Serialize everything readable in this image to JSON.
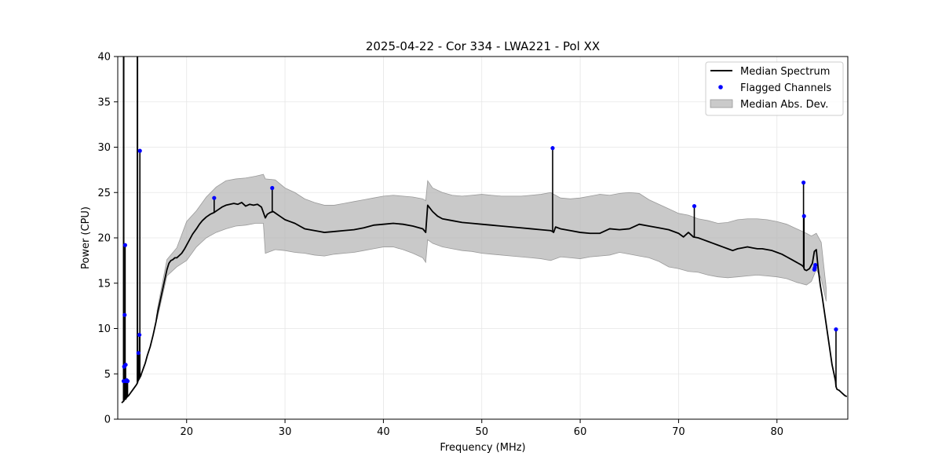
{
  "chart_data": {
    "type": "line",
    "title": "2025-04-22 - Cor 334 - LWA221 - Pol XX",
    "xlabel": "Frequency (MHz)",
    "ylabel": "Power (CPU)",
    "xlim": [
      13.0,
      87.2
    ],
    "ylim": [
      0,
      40
    ],
    "xticks": [
      20,
      30,
      40,
      50,
      60,
      70,
      80
    ],
    "yticks": [
      0,
      5,
      10,
      15,
      20,
      25,
      30,
      35,
      40
    ],
    "grid": true,
    "legend_position": "top-right",
    "series": [
      {
        "name": "Median Spectrum",
        "kind": "line",
        "color": "#000000",
        "x": [
          13.4,
          13.6,
          13.7,
          13.75,
          13.8,
          13.9,
          14.1,
          14.3,
          14.5,
          14.7,
          14.9,
          15.0,
          15.05,
          15.1,
          15.2,
          15.3,
          15.35,
          15.4,
          15.5,
          15.6,
          15.8,
          16.0,
          16.3,
          16.6,
          16.9,
          17.0,
          17.2,
          17.5,
          17.8,
          18.0,
          18.2,
          18.4,
          18.6,
          18.8,
          19.0,
          19.2,
          19.5,
          19.8,
          20.2,
          20.6,
          21.0,
          21.3,
          21.6,
          22.0,
          22.4,
          22.8,
          23.2,
          23.6,
          24.0,
          24.4,
          24.8,
          25.2,
          25.6,
          26.0,
          26.4,
          26.8,
          27.2,
          27.6,
          28.0,
          28.2,
          28.5,
          28.8,
          29.2,
          29.6,
          30.0,
          30.5,
          31.0,
          31.5,
          32.0,
          32.5,
          33.0,
          33.5,
          34.0,
          35.0,
          36.0,
          37.0,
          38.0,
          39.0,
          40.0,
          41.0,
          42.0,
          43.0,
          44.0,
          44.3,
          44.5,
          45.0,
          45.5,
          46.0,
          47.0,
          48.0,
          49.0,
          50.0,
          51.0,
          52.0,
          53.0,
          54.0,
          55.0,
          56.0,
          57.0,
          57.2,
          57.3,
          57.5,
          58.0,
          59.0,
          60.0,
          61.0,
          62.0,
          63.0,
          64.0,
          65.0,
          66.0,
          67.0,
          68.0,
          69.0,
          70.0,
          70.5,
          71.0,
          71.5,
          72.0,
          72.5,
          73.0,
          73.5,
          74.0,
          74.5,
          75.0,
          75.5,
          76.0,
          76.5,
          77.0,
          77.5,
          78.0,
          78.5,
          79.0,
          79.5,
          80.0,
          80.5,
          81.0,
          81.5,
          82.0,
          82.5,
          82.7,
          82.8,
          83.0,
          83.3,
          83.6,
          83.8,
          84.0,
          84.2,
          84.4,
          84.6,
          84.8,
          85.0,
          85.2,
          85.4,
          85.6,
          85.8,
          85.95,
          86.0,
          86.1,
          86.3,
          86.5,
          86.7,
          86.9,
          87.1
        ],
        "y": [
          1.8,
          2.0,
          2.2,
          2.3,
          2.2,
          2.4,
          2.6,
          2.9,
          3.2,
          3.5,
          3.8,
          4.0,
          4.2,
          4.3,
          4.5,
          4.7,
          4.8,
          5.0,
          5.3,
          5.6,
          6.2,
          7.0,
          8.0,
          9.3,
          10.8,
          11.5,
          12.5,
          14.0,
          15.5,
          16.5,
          17.2,
          17.5,
          17.6,
          17.8,
          17.8,
          18.0,
          18.3,
          18.8,
          19.6,
          20.4,
          21.0,
          21.5,
          21.9,
          22.3,
          22.6,
          22.8,
          23.1,
          23.4,
          23.6,
          23.7,
          23.8,
          23.7,
          23.9,
          23.5,
          23.7,
          23.6,
          23.7,
          23.4,
          22.2,
          22.6,
          22.8,
          22.9,
          22.6,
          22.3,
          22.0,
          21.8,
          21.6,
          21.3,
          21.0,
          20.9,
          20.8,
          20.7,
          20.6,
          20.7,
          20.8,
          20.9,
          21.1,
          21.4,
          21.5,
          21.6,
          21.5,
          21.3,
          21.0,
          20.6,
          23.6,
          22.9,
          22.4,
          22.1,
          21.9,
          21.7,
          21.6,
          21.5,
          21.4,
          21.3,
          21.2,
          21.1,
          21.0,
          20.9,
          20.8,
          20.7,
          20.6,
          21.2,
          21.0,
          20.8,
          20.6,
          20.5,
          20.5,
          21.0,
          20.9,
          21.0,
          21.5,
          21.3,
          21.1,
          20.9,
          20.5,
          20.1,
          20.6,
          20.1,
          20.0,
          19.8,
          19.6,
          19.4,
          19.2,
          19.0,
          18.8,
          18.6,
          18.8,
          18.9,
          19.0,
          18.9,
          18.8,
          18.8,
          18.7,
          18.6,
          18.4,
          18.2,
          17.9,
          17.6,
          17.3,
          17.0,
          16.8,
          16.5,
          16.4,
          16.6,
          17.2,
          18.5,
          18.7,
          16.5,
          14.8,
          13.5,
          12.0,
          10.5,
          9.0,
          7.5,
          6.0,
          5.0,
          4.2,
          3.6,
          3.3,
          3.2,
          3.0,
          2.8,
          2.6,
          2.5
        ]
      },
      {
        "name": "Flagged Channels",
        "kind": "scatter",
        "color": "#0000ff",
        "x": [
          13.6,
          13.65,
          13.7,
          13.75,
          13.8,
          13.85,
          13.9,
          14.0,
          15.1,
          15.2,
          15.25,
          22.8,
          28.7,
          57.2,
          71.6,
          82.7,
          82.75,
          83.8,
          83.85,
          83.9,
          86.0
        ],
        "y": [
          4.2,
          5.8,
          11.5,
          19.2,
          6.0,
          4.2,
          4.3,
          4.2,
          7.3,
          9.3,
          29.6,
          24.4,
          25.5,
          29.9,
          23.5,
          26.1,
          22.4,
          16.5,
          16.7,
          17.0,
          9.9
        ]
      },
      {
        "name": "Median Abs. Dev.",
        "kind": "band",
        "color": "#b4b4b4",
        "x": [
          17.0,
          18.0,
          19.0,
          20.0,
          21.0,
          22.0,
          23.0,
          24.0,
          25.0,
          26.0,
          27.0,
          27.8,
          28.0,
          29.0,
          30.0,
          31.0,
          32.0,
          33.0,
          34.0,
          35.0,
          36.0,
          37.0,
          38.0,
          39.0,
          40.0,
          41.0,
          42.0,
          43.0,
          44.0,
          44.3,
          44.5,
          45.0,
          46.0,
          47.0,
          48.0,
          49.0,
          50.0,
          51.0,
          52.0,
          53.0,
          54.0,
          55.0,
          56.0,
          57.0,
          58.0,
          59.0,
          60.0,
          61.0,
          62.0,
          63.0,
          64.0,
          65.0,
          66.0,
          67.0,
          68.0,
          69.0,
          70.0,
          71.0,
          72.0,
          73.0,
          74.0,
          75.0,
          76.0,
          77.0,
          78.0,
          79.0,
          80.0,
          81.0,
          82.0,
          83.0,
          83.5,
          84.0,
          84.5,
          85.0
        ],
        "lower": [
          11.0,
          15.8,
          16.8,
          17.5,
          19.0,
          20.0,
          20.6,
          21.0,
          21.3,
          21.4,
          21.6,
          21.6,
          18.3,
          18.7,
          18.6,
          18.4,
          18.3,
          18.1,
          18.0,
          18.2,
          18.3,
          18.4,
          18.6,
          18.8,
          19.0,
          19.0,
          18.7,
          18.3,
          17.8,
          17.3,
          19.8,
          19.4,
          19.0,
          18.8,
          18.6,
          18.5,
          18.3,
          18.2,
          18.1,
          18.0,
          17.9,
          17.8,
          17.7,
          17.5,
          17.9,
          17.8,
          17.7,
          17.9,
          18.0,
          18.1,
          18.4,
          18.2,
          18.0,
          17.8,
          17.4,
          16.8,
          16.6,
          16.3,
          16.2,
          15.9,
          15.7,
          15.6,
          15.7,
          15.8,
          15.9,
          15.8,
          15.7,
          15.5,
          15.1,
          14.8,
          15.2,
          16.5,
          15.5,
          13.0
        ],
        "upper": [
          12.0,
          17.6,
          18.9,
          21.8,
          23.0,
          24.5,
          25.6,
          26.3,
          26.5,
          26.6,
          26.8,
          27.0,
          26.5,
          26.4,
          25.5,
          25.0,
          24.3,
          23.9,
          23.6,
          23.6,
          23.8,
          24.0,
          24.2,
          24.4,
          24.6,
          24.7,
          24.6,
          24.5,
          24.3,
          24.1,
          26.3,
          25.5,
          25.0,
          24.7,
          24.6,
          24.7,
          24.8,
          24.7,
          24.6,
          24.6,
          24.6,
          24.7,
          24.8,
          25.0,
          24.4,
          24.3,
          24.4,
          24.6,
          24.8,
          24.7,
          24.9,
          25.0,
          24.9,
          24.2,
          23.7,
          23.2,
          22.7,
          22.5,
          22.1,
          21.9,
          21.6,
          21.7,
          22.0,
          22.1,
          22.1,
          22.0,
          21.8,
          21.5,
          21.0,
          20.5,
          20.2,
          20.5,
          19.5,
          14.5
        ]
      }
    ]
  }
}
